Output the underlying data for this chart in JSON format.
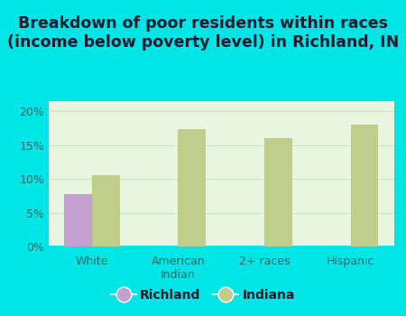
{
  "title": "Breakdown of poor residents within races\n(income below poverty level) in Richland, IN",
  "categories": [
    "White",
    "American\nIndian",
    "2+ races",
    "Hispanic"
  ],
  "richland_values": [
    7.8,
    0,
    0,
    0
  ],
  "indiana_values": [
    10.5,
    17.3,
    16.0,
    18.0
  ],
  "richland_color": "#c4a0d0",
  "indiana_color": "#bfcf8a",
  "background_color": "#00e5e5",
  "plot_bg_color": "#e8f5e0",
  "yticks": [
    0,
    5,
    10,
    15,
    20
  ],
  "ylim": [
    0,
    21.5
  ],
  "bar_width": 0.32,
  "title_fontsize": 12.5,
  "tick_fontsize": 9,
  "legend_fontsize": 10,
  "grid_color": "#c8e8c8"
}
